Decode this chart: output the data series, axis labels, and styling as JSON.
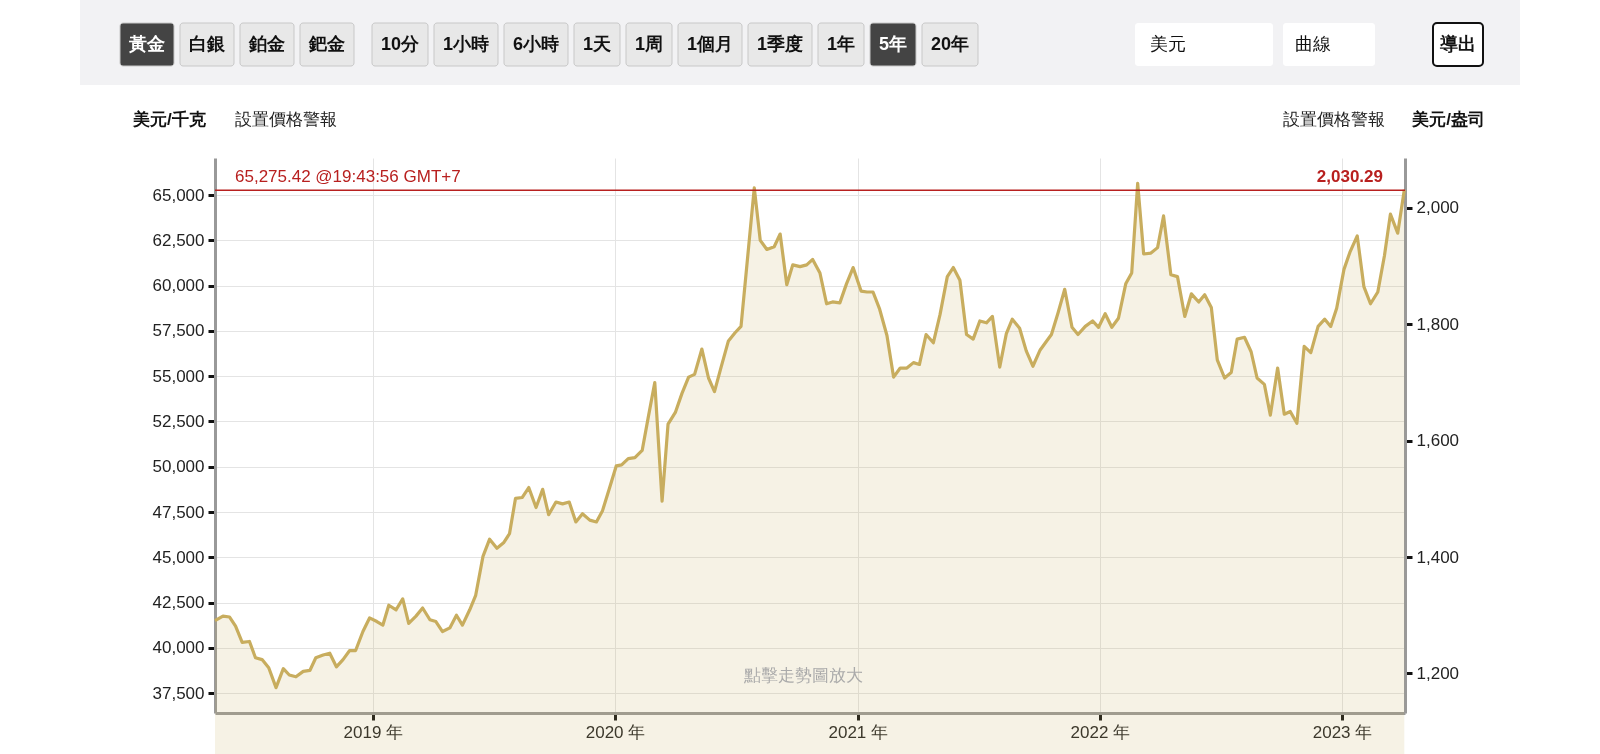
{
  "chart_data": {
    "type": "area",
    "ylabel": "美元/千克",
    "y2label": "美元/盎司",
    "annotations": [
      "黃金",
      "白銀",
      "鉑金",
      "鈀金",
      "10分",
      "1小時",
      "6小時",
      "1天",
      "1周",
      "1個月",
      "1季度",
      "1年",
      "5年",
      "20年",
      "美元",
      "曲線",
      "導出",
      "設置價格警報",
      "設置價格警報",
      "點擊走勢圖放大",
      "2,030.29"
    ],
    "x": [
      "2018-05-08",
      "2018-05-20",
      "2018-05-30",
      "2018-06-08",
      "2018-06-18",
      "2018-06-29",
      "2018-07-08",
      "2018-07-18",
      "2018-07-28",
      "2018-08-08",
      "2018-08-19",
      "2018-08-28",
      "2018-09-07",
      "2018-09-18",
      "2018-09-28",
      "2018-10-07",
      "2018-10-18",
      "2018-10-28",
      "2018-11-07",
      "2018-11-17",
      "2018-11-27",
      "2018-12-06",
      "2018-12-17",
      "2018-12-27",
      "2019-01-07",
      "2019-01-16",
      "2019-01-25",
      "2019-02-05",
      "2019-02-15",
      "2019-02-24",
      "2019-03-07",
      "2019-03-17",
      "2019-03-28",
      "2019-04-06",
      "2019-04-16",
      "2019-04-27",
      "2019-05-07",
      "2019-05-16",
      "2019-05-27",
      "2019-06-05",
      "2019-06-16",
      "2019-06-26",
      "2019-07-07",
      "2019-07-17",
      "2019-07-26",
      "2019-08-04",
      "2019-08-14",
      "2019-08-24",
      "2019-09-04",
      "2019-09-14",
      "2019-09-23",
      "2019-10-04",
      "2019-10-14",
      "2019-10-24",
      "2019-11-03",
      "2019-11-13",
      "2019-11-24",
      "2019-12-04",
      "2019-12-13",
      "2019-12-24",
      "2020-01-03",
      "2020-01-11",
      "2020-01-21",
      "2020-01-31",
      "2020-02-11",
      "2020-02-20",
      "2020-03-01",
      "2020-03-12",
      "2020-03-21",
      "2020-04-01",
      "2020-04-11",
      "2020-04-21",
      "2020-04-30",
      "2020-05-11",
      "2020-05-21",
      "2020-05-30",
      "2020-06-09",
      "2020-06-20",
      "2020-06-30",
      "2020-07-09",
      "2020-07-29",
      "2020-08-07",
      "2020-08-17",
      "2020-08-28",
      "2020-09-06",
      "2020-09-16",
      "2020-09-25",
      "2020-10-06",
      "2020-10-16",
      "2020-10-25",
      "2020-11-05",
      "2020-11-15",
      "2020-11-24",
      "2020-12-05",
      "2020-12-15",
      "2020-12-25",
      "2021-01-06",
      "2021-01-15",
      "2021-01-24",
      "2021-02-03",
      "2021-02-14",
      "2021-02-24",
      "2021-03-06",
      "2021-03-16",
      "2021-03-26",
      "2021-04-04",
      "2021-04-14",
      "2021-04-25",
      "2021-05-05",
      "2021-05-16",
      "2021-05-25",
      "2021-06-04",
      "2021-06-14",
      "2021-06-24",
      "2021-07-04",
      "2021-07-14",
      "2021-07-23",
      "2021-08-03",
      "2021-08-13",
      "2021-08-22",
      "2021-09-02",
      "2021-09-12",
      "2021-09-22",
      "2021-10-03",
      "2021-10-12",
      "2021-10-20",
      "2021-10-30",
      "2021-11-09",
      "2021-11-20",
      "2021-11-29",
      "2021-12-10",
      "2021-12-21",
      "2021-12-30",
      "2022-01-09",
      "2022-01-19",
      "2022-01-29",
      "2022-02-09",
      "2022-02-18",
      "2022-02-27",
      "2022-03-08",
      "2022-03-19",
      "2022-03-29",
      "2022-04-07",
      "2022-04-18",
      "2022-04-28",
      "2022-05-09",
      "2022-05-19",
      "2022-05-30",
      "2022-06-08",
      "2022-06-18",
      "2022-06-27",
      "2022-07-08",
      "2022-07-18",
      "2022-07-27",
      "2022-08-07",
      "2022-08-17",
      "2022-08-26",
      "2022-09-06",
      "2022-09-15",
      "2022-09-26",
      "2022-10-06",
      "2022-10-15",
      "2022-10-25",
      "2022-11-05",
      "2022-11-15",
      "2022-11-26",
      "2022-12-06",
      "2022-12-15",
      "2022-12-24",
      "2023-01-04",
      "2023-01-13",
      "2023-01-24",
      "2023-02-03",
      "2023-02-13",
      "2023-02-24",
      "2023-03-06",
      "2023-03-15",
      "2023-03-26",
      "2023-04-05"
    ],
    "series": [
      {
        "color": "#c8ad5e",
        "values": [
          41500,
          41750,
          41700,
          41200,
          40300,
          40350,
          39450,
          39350,
          38900,
          37800,
          38850,
          38500,
          38400,
          38700,
          38750,
          39450,
          39600,
          39700,
          38950,
          39350,
          39850,
          39850,
          40900,
          41650,
          41450,
          41250,
          42350,
          42100,
          42700,
          41350,
          41750,
          42200,
          41550,
          41450,
          40900,
          41100,
          41800,
          41250,
          42100,
          42900,
          45050,
          46000,
          45500,
          45800,
          46300,
          48250,
          48300,
          48850,
          47750,
          48750,
          47350,
          48050,
          47950,
          48050,
          46950,
          47400,
          47050,
          46950,
          47550,
          48850,
          50050,
          50100,
          50450,
          50500,
          50900,
          52700,
          54650,
          48100,
          52350,
          53000,
          54050,
          54950,
          55100,
          56500,
          54900,
          54150,
          55500,
          56950,
          57400,
          57750,
          65400,
          62500,
          62000,
          62150,
          62850,
          60050,
          61150,
          61050,
          61150,
          61450,
          60700,
          59000,
          59100,
          59050,
          60100,
          61000,
          59700,
          59650,
          59650,
          58700,
          57250,
          54950,
          55450,
          55450,
          55750,
          55650,
          57300,
          56850,
          58400,
          60500,
          61000,
          60300,
          57300,
          57050,
          58050,
          57950,
          58300,
          55500,
          57350,
          58150,
          57650,
          56400,
          55550,
          56450,
          56900,
          57300,
          58500,
          59800,
          57700,
          57300,
          57750,
          58050,
          57700,
          58450,
          57700,
          58200,
          60100,
          60700,
          65650,
          61750,
          61800,
          62100,
          63850,
          60600,
          60500,
          58300,
          59550,
          59100,
          59500,
          58800,
          55900,
          54900,
          55200,
          57050,
          57150,
          56350,
          54900,
          54550,
          52850,
          55450,
          52900,
          53050,
          52400,
          56650,
          56300,
          57750,
          58150,
          57750,
          58750,
          60900,
          61850,
          62750,
          59950,
          59000,
          59650,
          61650,
          63950,
          62900,
          65300
        ]
      }
    ],
    "xlim": [
      "2018-05-08",
      "2023-04-06"
    ],
    "xticks": [
      {
        "value": "2019-01-01",
        "label": "2019 年"
      },
      {
        "value": "2020-01-01",
        "label": "2020 年"
      },
      {
        "value": "2021-01-01",
        "label": "2021 年"
      },
      {
        "value": "2022-01-01",
        "label": "2022 年"
      },
      {
        "value": "2023-01-01",
        "label": "2023 年"
      }
    ],
    "ylim": [
      36400,
      67050
    ],
    "yticks": [
      {
        "value": 37500,
        "label": "37,500"
      },
      {
        "value": 40000,
        "label": "40,000"
      },
      {
        "value": 42500,
        "label": "42,500"
      },
      {
        "value": 45000,
        "label": "45,000"
      },
      {
        "value": 47500,
        "label": "47,500"
      },
      {
        "value": 50000,
        "label": "50,000"
      },
      {
        "value": 52500,
        "label": "52,500"
      },
      {
        "value": 55000,
        "label": "55,000"
      },
      {
        "value": 57500,
        "label": "57,500"
      },
      {
        "value": 60000,
        "label": "60,000"
      },
      {
        "value": 62500,
        "label": "62,500"
      },
      {
        "value": 65000,
        "label": "65,000"
      }
    ],
    "y2lim": [
      1132,
      2085.5
    ],
    "y2ticks": [
      {
        "value": 1200,
        "label": "1,200"
      },
      {
        "value": 1400,
        "label": "1,400"
      },
      {
        "value": 1600,
        "label": "1,600"
      },
      {
        "value": 1800,
        "label": "1,800"
      },
      {
        "value": 2000,
        "label": "2,000"
      }
    ],
    "ref_lines": [
      {
        "axis": "y",
        "value": 65275.42,
        "label": "65,275.42 @19:43:56 GMT+7",
        "color": "#b8201f"
      }
    ],
    "grid": true,
    "marker": "none",
    "line_style": "solid"
  }
}
